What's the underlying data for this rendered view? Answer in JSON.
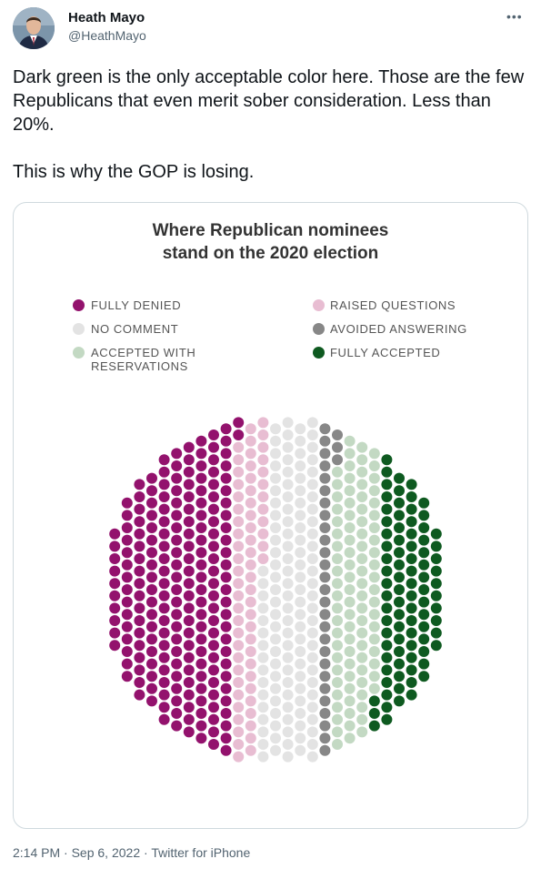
{
  "author": {
    "name": "Heath Mayo",
    "handle": "@HeathMayo"
  },
  "more_icon": "more-horizontal-icon",
  "tweet": {
    "text": "Dark green is the only acceptable color here. Those are the few Republicans that even merit sober consideration. Less than 20%.\n\nThis is why the GOP is losing."
  },
  "chart_data": {
    "type": "dot-plot",
    "title_line1": "Where Republican nominees",
    "title_line2": "stand on the 2020 election",
    "legend": [
      {
        "label": "FULLY DENIED",
        "color": "#93126d"
      },
      {
        "label": "RAISED QUESTIONS",
        "color": "#e8bdd2"
      },
      {
        "label": "NO COMMENT",
        "color": "#e3e3e3"
      },
      {
        "label": "AVOIDED ANSWERING",
        "color": "#878787"
      },
      {
        "label": "ACCEPTED WITH RESERVATIONS",
        "color": "#c3d9c3"
      },
      {
        "label": "FULLY ACCEPTED",
        "color": "#0e5a20"
      }
    ],
    "categories": [
      "FULLY DENIED",
      "RAISED QUESTIONS",
      "NO COMMENT",
      "AVOIDED ANSWERING",
      "ACCEPTED WITH RESERVATIONS",
      "FULLY ACCEPTED"
    ],
    "values": [
      199,
      61,
      118,
      28,
      86,
      82
    ]
  },
  "footer": {
    "time": "2:14 PM",
    "sep1": " · ",
    "date": "Sep 6, 2022",
    "sep2": " · ",
    "source": "Twitter for iPhone"
  }
}
